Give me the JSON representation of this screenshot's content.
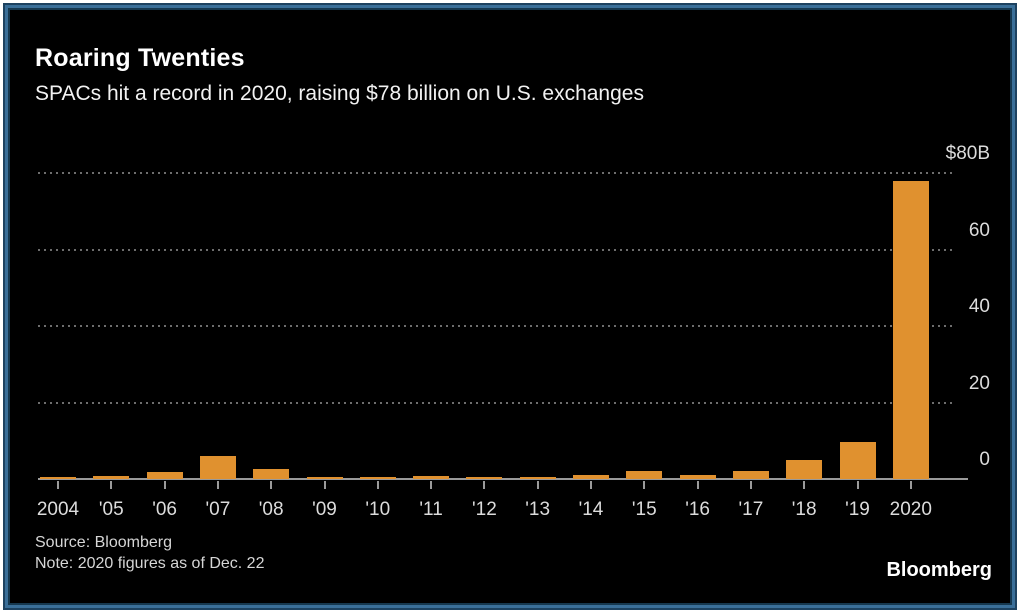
{
  "header": {
    "title": "Roaring Twenties",
    "subtitle": "SPACs hit a record in 2020, raising $78 billion on U.S. exchanges"
  },
  "footer": {
    "source": "Source: Bloomberg",
    "note": "Note: 2020 figures as of Dec. 22",
    "brand": "Bloomberg"
  },
  "colors": {
    "bar": "#e0912f",
    "background": "#000000",
    "text": "#ffffff",
    "axis_labels": "#dcdcdc",
    "border_blue": "#3a6f99"
  },
  "chart_data": {
    "type": "bar",
    "title": "Roaring Twenties",
    "subtitle": "SPACs hit a record in 2020, raising $78 billion on U.S. exchanges",
    "categories": [
      "2004",
      "'05",
      "'06",
      "'07",
      "'08",
      "'09",
      "'10",
      "'11",
      "'12",
      "'13",
      "'14",
      "'15",
      "'16",
      "'17",
      "'18",
      "'19",
      "2020"
    ],
    "values": [
      0.4,
      0.8,
      1.8,
      6,
      2.6,
      0.4,
      0.6,
      0.7,
      0.4,
      0.5,
      1,
      2.2,
      1,
      2,
      5,
      9.7,
      78
    ],
    "unit": "billions USD",
    "ylim": [
      0,
      80
    ],
    "yticks": [
      {
        "label": "$80B",
        "value": 80
      },
      {
        "label": "60",
        "value": 60
      },
      {
        "label": "40",
        "value": 40
      },
      {
        "label": "20",
        "value": 20
      },
      {
        "label": "0",
        "value": 0
      }
    ],
    "grid": "horizontal-dotted",
    "legend": "none",
    "ylabel_position": "right"
  }
}
